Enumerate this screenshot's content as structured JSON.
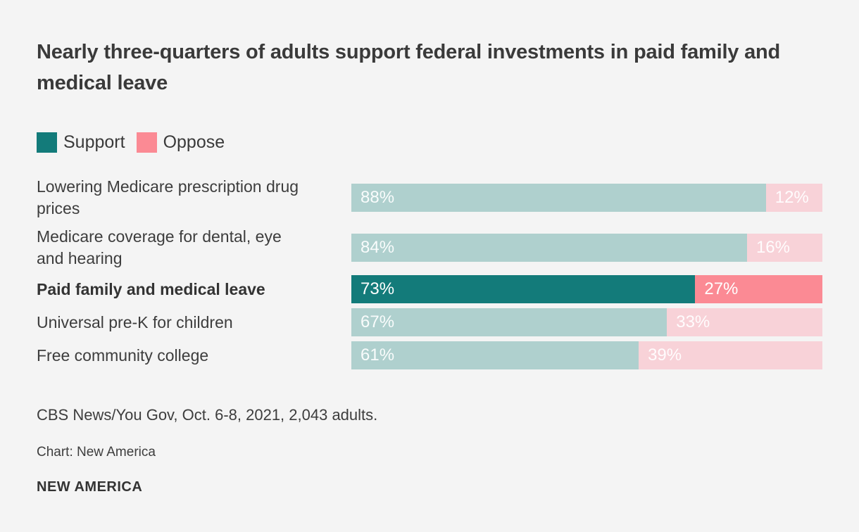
{
  "colors": {
    "bg": "#f4f4f4",
    "text": "#3d3d3d",
    "support_strong": "#137b7a",
    "oppose_strong": "#fb8a94",
    "support_muted": "#afd0ce",
    "oppose_muted": "#f8d2d8"
  },
  "chart_data": {
    "type": "bar",
    "orientation": "horizontal",
    "stacked": true,
    "title": "Nearly three-quarters of adults support federal investments in paid family and medical leave",
    "categories": [
      "Lowering Medicare prescription drug prices",
      "Medicare coverage for dental, eye and hearing",
      "Paid family and medical leave",
      "Universal pre-K for children",
      "Free community college"
    ],
    "series": [
      {
        "name": "Support",
        "values": [
          88,
          84,
          73,
          67,
          61
        ]
      },
      {
        "name": "Oppose",
        "values": [
          12,
          16,
          27,
          33,
          39
        ]
      }
    ],
    "highlighted_category": "Paid family and medical leave",
    "xlim": [
      0,
      100
    ],
    "value_suffix": "%",
    "legend_position": "top-left",
    "grid": false
  },
  "legend": {
    "support_label": "Support",
    "oppose_label": "Oppose"
  },
  "rows": [
    {
      "label": "Lowering Medicare prescription drug prices",
      "support_label": "88%",
      "oppose_label": "12%"
    },
    {
      "label": "Medicare coverage for dental, eye and hearing",
      "support_label": "84%",
      "oppose_label": "16%"
    },
    {
      "label": "Paid family and medical leave",
      "support_label": "73%",
      "oppose_label": "27%"
    },
    {
      "label": "Universal pre-K for children",
      "support_label": "67%",
      "oppose_label": "33%"
    },
    {
      "label": "Free community college",
      "support_label": "61%",
      "oppose_label": "39%"
    }
  ],
  "footer": {
    "source": "CBS News/You Gov, Oct. 6-8, 2021, 2,043 adults.",
    "credit": "Chart: New America",
    "logo": "NEW AMERICA"
  }
}
